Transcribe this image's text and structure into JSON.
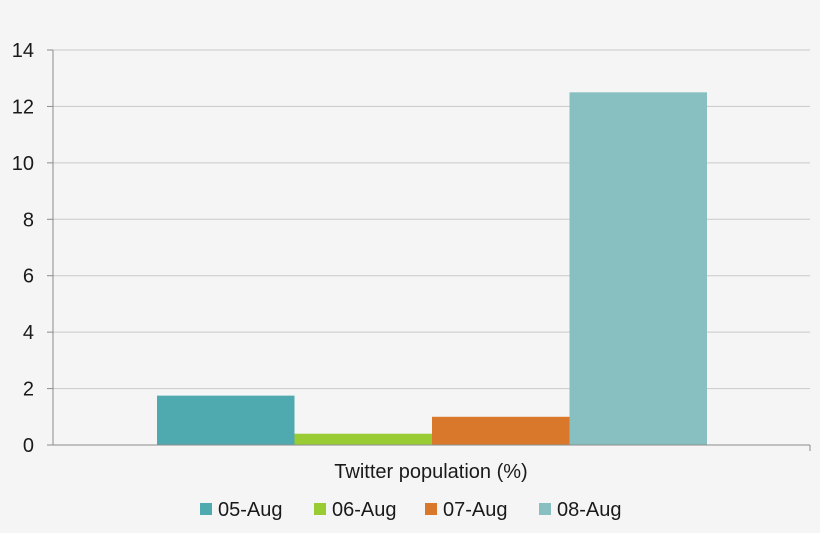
{
  "chart_data": {
    "type": "bar",
    "categories": [
      "Twitter population (%)"
    ],
    "xlabel": "Twitter population (%)",
    "ylabel": "",
    "title": "",
    "ylim": [
      0,
      14
    ],
    "yticks": [
      0,
      2,
      4,
      6,
      8,
      10,
      12,
      14
    ],
    "grid": true,
    "legend_position": "bottom",
    "series": [
      {
        "name": "05-Aug",
        "values": [
          1.75
        ],
        "color": "#4faaaf"
      },
      {
        "name": "06-Aug",
        "values": [
          0.4
        ],
        "color": "#99cc33"
      },
      {
        "name": "07-Aug",
        "values": [
          1.0
        ],
        "color": "#d9782a"
      },
      {
        "name": "08-Aug",
        "values": [
          12.5
        ],
        "color": "#88c0c2"
      }
    ]
  }
}
